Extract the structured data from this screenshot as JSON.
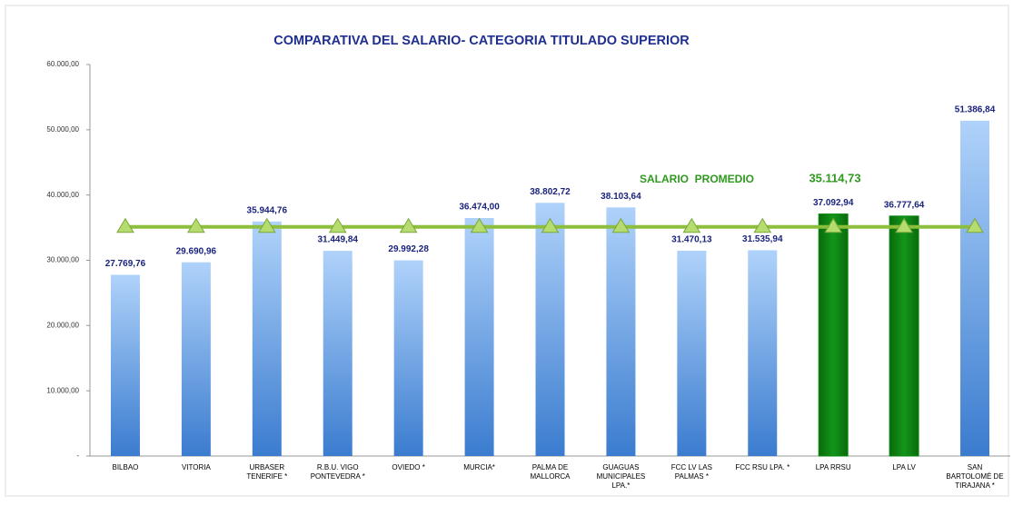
{
  "chart_data": {
    "type": "bar",
    "title": "COMPARATIVA DEL SALARIO- CATEGORIA TITULADO SUPERIOR",
    "categories": [
      "BILBAO",
      "VITORIA",
      "URBASER\nTENERIFE *",
      "R.B.U. VIGO\nPONTEVEDRA *",
      "OVIEDO *",
      "MURCIA*",
      "PALMA DE\nMALLORCA",
      "GUAGUAS\nMUNICIPALES\nLPA.*",
      "FCC LV LAS\nPALMAS *",
      "FCC RSU LPA. *",
      "LPA RRSU",
      "LPA LV",
      "SAN\nBARTOLOMÉ DE\nTIRAJANA *"
    ],
    "values": [
      27769.76,
      29690.96,
      35944.76,
      31449.84,
      29992.28,
      36474.0,
      38802.72,
      38103.64,
      31470.13,
      31535.94,
      37092.94,
      36777.64,
      51386.84
    ],
    "value_labels": [
      "27.769,76",
      "29.690,96",
      "35.944,76",
      "31.449,84",
      "29.992,28",
      "36.474,00",
      "38.802,72",
      "38.103,64",
      "31.470,13",
      "31.535,94",
      "37.092,94",
      "36.777,64",
      "51.386,84"
    ],
    "colors": [
      "#5b9be6",
      "#5b9be6",
      "#5b9be6",
      "#5b9be6",
      "#5b9be6",
      "#5b9be6",
      "#5b9be6",
      "#5b9be6",
      "#5b9be6",
      "#5b9be6",
      "#0e8a12",
      "#0e8a12",
      "#5b9be6"
    ],
    "average": {
      "name": "SALARIO  PROMEDIO",
      "value": 35114.73,
      "value_label": "35.114,73",
      "color": "#8dbf3c"
    },
    "ylim": [
      0,
      60000
    ],
    "yticks": [
      {
        "value": 0,
        "label": "-"
      },
      {
        "value": 10000,
        "label": "10.000,00"
      },
      {
        "value": 20000,
        "label": "20.000,00"
      },
      {
        "value": 30000,
        "label": "30.000,00"
      },
      {
        "value": 40000,
        "label": "40.000,00"
      },
      {
        "value": 50000,
        "label": "50.000,00"
      },
      {
        "value": 60000,
        "label": "60.000,00"
      }
    ]
  }
}
